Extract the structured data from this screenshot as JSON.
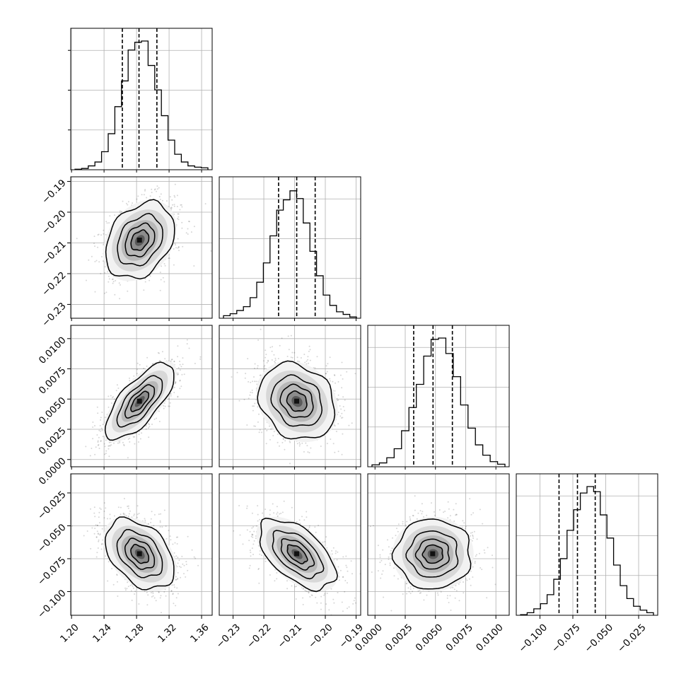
{
  "chart_data": {
    "type": "corner",
    "title": "",
    "parameters": [
      {
        "name": "",
        "ticks": [
          1.2,
          1.24,
          1.28,
          1.32,
          1.36
        ],
        "tick_labels": [
          "1.20",
          "1.24",
          "1.28",
          "1.32",
          "1.36"
        ],
        "range": [
          1.199,
          1.373
        ],
        "quantiles": [
          1.2625,
          1.283,
          1.305
        ],
        "histogram": [
          0.004,
          0.01,
          0.03,
          0.06,
          0.14,
          0.28,
          0.49,
          0.69,
          0.93,
          0.99,
          1.0,
          0.81,
          0.62,
          0.42,
          0.23,
          0.12,
          0.06,
          0.03,
          0.02,
          0.015
        ]
      },
      {
        "name": "",
        "ticks": [
          -0.23,
          -0.22,
          -0.21,
          -0.2,
          -0.19
        ],
        "tick_labels": [
          "−0.23",
          "−0.22",
          "−0.21",
          "−0.20",
          "−0.19"
        ],
        "range": [
          -0.2345,
          -0.1885
        ],
        "quantiles": [
          -0.2152,
          -0.2093,
          -0.2033
        ],
        "histogram": [
          0.02,
          0.035,
          0.06,
          0.09,
          0.16,
          0.28,
          0.43,
          0.64,
          0.84,
          0.92,
          0.99,
          0.93,
          0.74,
          0.52,
          0.33,
          0.18,
          0.1,
          0.05,
          0.03,
          0.01
        ]
      },
      {
        "name": "",
        "ticks": [
          0.0,
          0.0025,
          0.005,
          0.0075,
          0.01
        ],
        "tick_labels": [
          "0.0000",
          "0.0025",
          "0.0050",
          "0.0075",
          "0.0100"
        ],
        "range": [
          -0.0006,
          0.0111
        ],
        "quantiles": [
          0.0032,
          0.0048,
          0.0064
        ],
        "histogram": [
          0.015,
          0.03,
          0.07,
          0.14,
          0.28,
          0.46,
          0.64,
          0.86,
          0.99,
          1.0,
          0.88,
          0.7,
          0.48,
          0.3,
          0.17,
          0.09,
          0.04,
          0.02
        ]
      },
      {
        "name": "",
        "ticks": [
          -0.1,
          -0.075,
          -0.05,
          -0.025
        ],
        "tick_labels": [
          "−0.100",
          "−0.075",
          "−0.050",
          "−0.025"
        ],
        "range": [
          -0.118,
          -0.0105
        ],
        "quantiles": [
          -0.0855,
          -0.0715,
          -0.058
        ],
        "histogram": [
          0.005,
          0.02,
          0.05,
          0.09,
          0.16,
          0.28,
          0.44,
          0.66,
          0.82,
          0.95,
          1.0,
          0.96,
          0.78,
          0.6,
          0.39,
          0.23,
          0.13,
          0.07,
          0.04,
          0.02
        ]
      }
    ],
    "pairs": [
      {
        "x": 0,
        "y": 1,
        "center": [
          1.284,
          -0.2092
        ],
        "sd": [
          0.0215,
          0.0063
        ],
        "corr": 0.3
      },
      {
        "x": 0,
        "y": 2,
        "center": [
          1.284,
          0.0048
        ],
        "sd": [
          0.0215,
          0.0016
        ],
        "corr": 0.72
      },
      {
        "x": 1,
        "y": 2,
        "center": [
          -0.2092,
          0.0048
        ],
        "sd": [
          0.0063,
          0.0016
        ],
        "corr": -0.2
      },
      {
        "x": 0,
        "y": 3,
        "center": [
          1.284,
          -0.0715
        ],
        "sd": [
          0.0215,
          0.0135
        ],
        "corr": -0.4
      },
      {
        "x": 1,
        "y": 3,
        "center": [
          -0.2092,
          -0.0715
        ],
        "sd": [
          0.0063,
          0.0135
        ],
        "corr": -0.55
      },
      {
        "x": 2,
        "y": 3,
        "center": [
          0.0048,
          -0.0715
        ],
        "sd": [
          0.0016,
          0.0135
        ],
        "corr": 0.0
      }
    ],
    "contour_levels_sigma": [
      0.5,
      1.0,
      1.5,
      2.0
    ],
    "grid": true,
    "colors": {
      "line": "#000000",
      "grid": "#b0b0b0",
      "points": "#000000"
    }
  }
}
